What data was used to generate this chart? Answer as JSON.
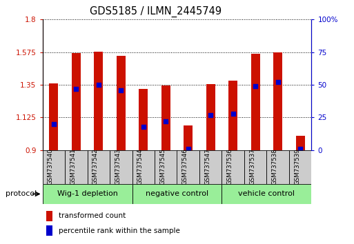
{
  "title": "GDS5185 / ILMN_2445749",
  "samples": [
    "GSM737540",
    "GSM737541",
    "GSM737542",
    "GSM737543",
    "GSM737544",
    "GSM737545",
    "GSM737546",
    "GSM737547",
    "GSM737536",
    "GSM737537",
    "GSM737538",
    "GSM737539"
  ],
  "bar_values": [
    1.36,
    1.57,
    1.58,
    1.55,
    1.32,
    1.345,
    1.07,
    1.355,
    1.38,
    1.565,
    1.575,
    1.0
  ],
  "percentile_values": [
    20,
    47,
    50,
    46,
    18,
    22,
    1,
    27,
    28,
    49,
    52,
    1
  ],
  "bar_bottom": 0.9,
  "ylim_left": [
    0.9,
    1.8
  ],
  "ylim_right": [
    0.0,
    100.0
  ],
  "yticks_left": [
    0.9,
    1.125,
    1.35,
    1.575,
    1.8
  ],
  "yticks_right": [
    0,
    25,
    50,
    75,
    100
  ],
  "ytick_labels_left": [
    "0.9",
    "1.125",
    "1.35",
    "1.575",
    "1.8"
  ],
  "ytick_labels_right": [
    "0",
    "25",
    "50",
    "75",
    "100%"
  ],
  "bar_color": "#cc1100",
  "dot_color": "#0000cc",
  "groups": [
    {
      "label": "Wig-1 depletion",
      "start": 0,
      "end": 4
    },
    {
      "label": "negative control",
      "start": 4,
      "end": 8
    },
    {
      "label": "vehicle control",
      "start": 8,
      "end": 12
    }
  ],
  "group_bg_color": "#99ee99",
  "sample_box_color": "#cccccc",
  "protocol_label": "protocol",
  "legend_items": [
    {
      "color": "#cc1100",
      "label": "transformed count"
    },
    {
      "color": "#0000cc",
      "label": "percentile rank within the sample"
    }
  ],
  "grid_color": "#000000",
  "left_axis_color": "#cc1100",
  "right_axis_color": "#0000cc",
  "bar_width": 0.4
}
